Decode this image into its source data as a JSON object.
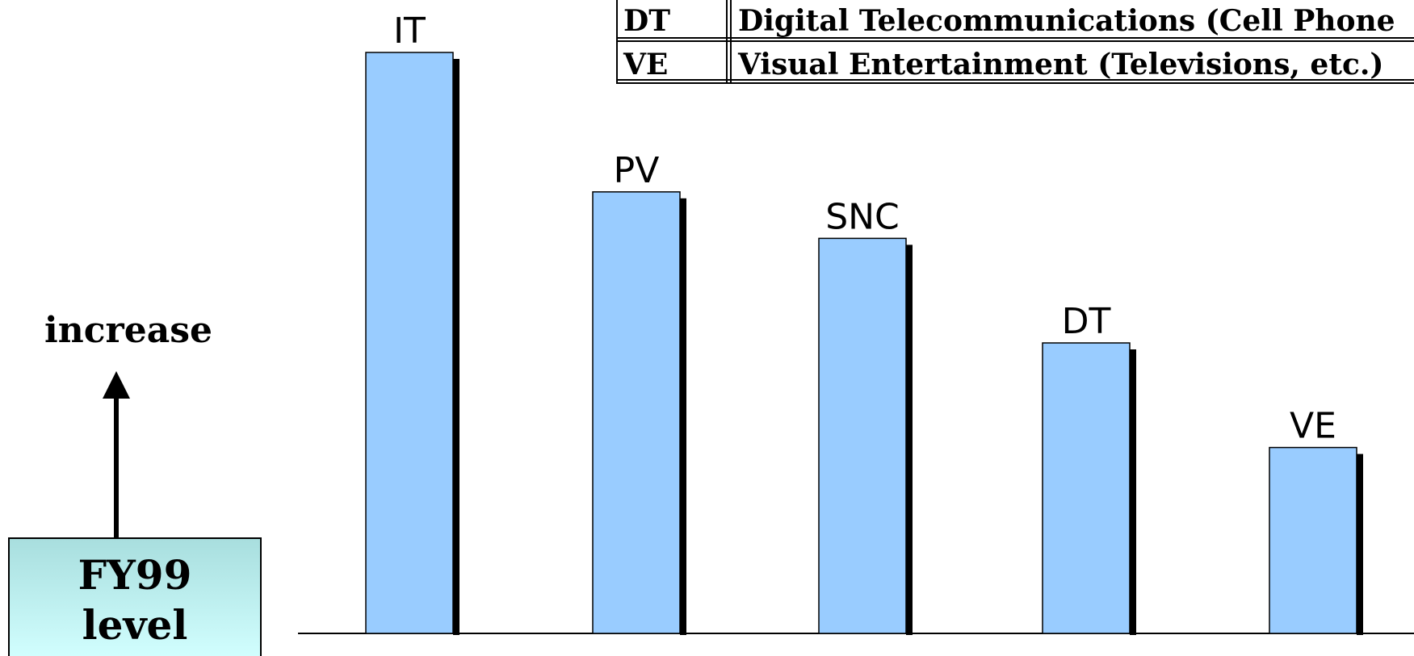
{
  "chart_data": {
    "type": "bar",
    "categories": [
      "IT",
      "PV",
      "SNC",
      "DT",
      "VE"
    ],
    "values": [
      100,
      76,
      68,
      50,
      32
    ],
    "color": "#99ccff",
    "ylim": [
      0,
      100
    ],
    "annotations": {
      "increase": "increase",
      "base_line1": "FY99",
      "base_line2": "level"
    },
    "legend_table": [
      [
        "DT",
        "Digital Telecommunications (Cell Phone"
      ],
      [
        "VE",
        "Visual Entertainment (Televisions, etc.)"
      ]
    ]
  }
}
